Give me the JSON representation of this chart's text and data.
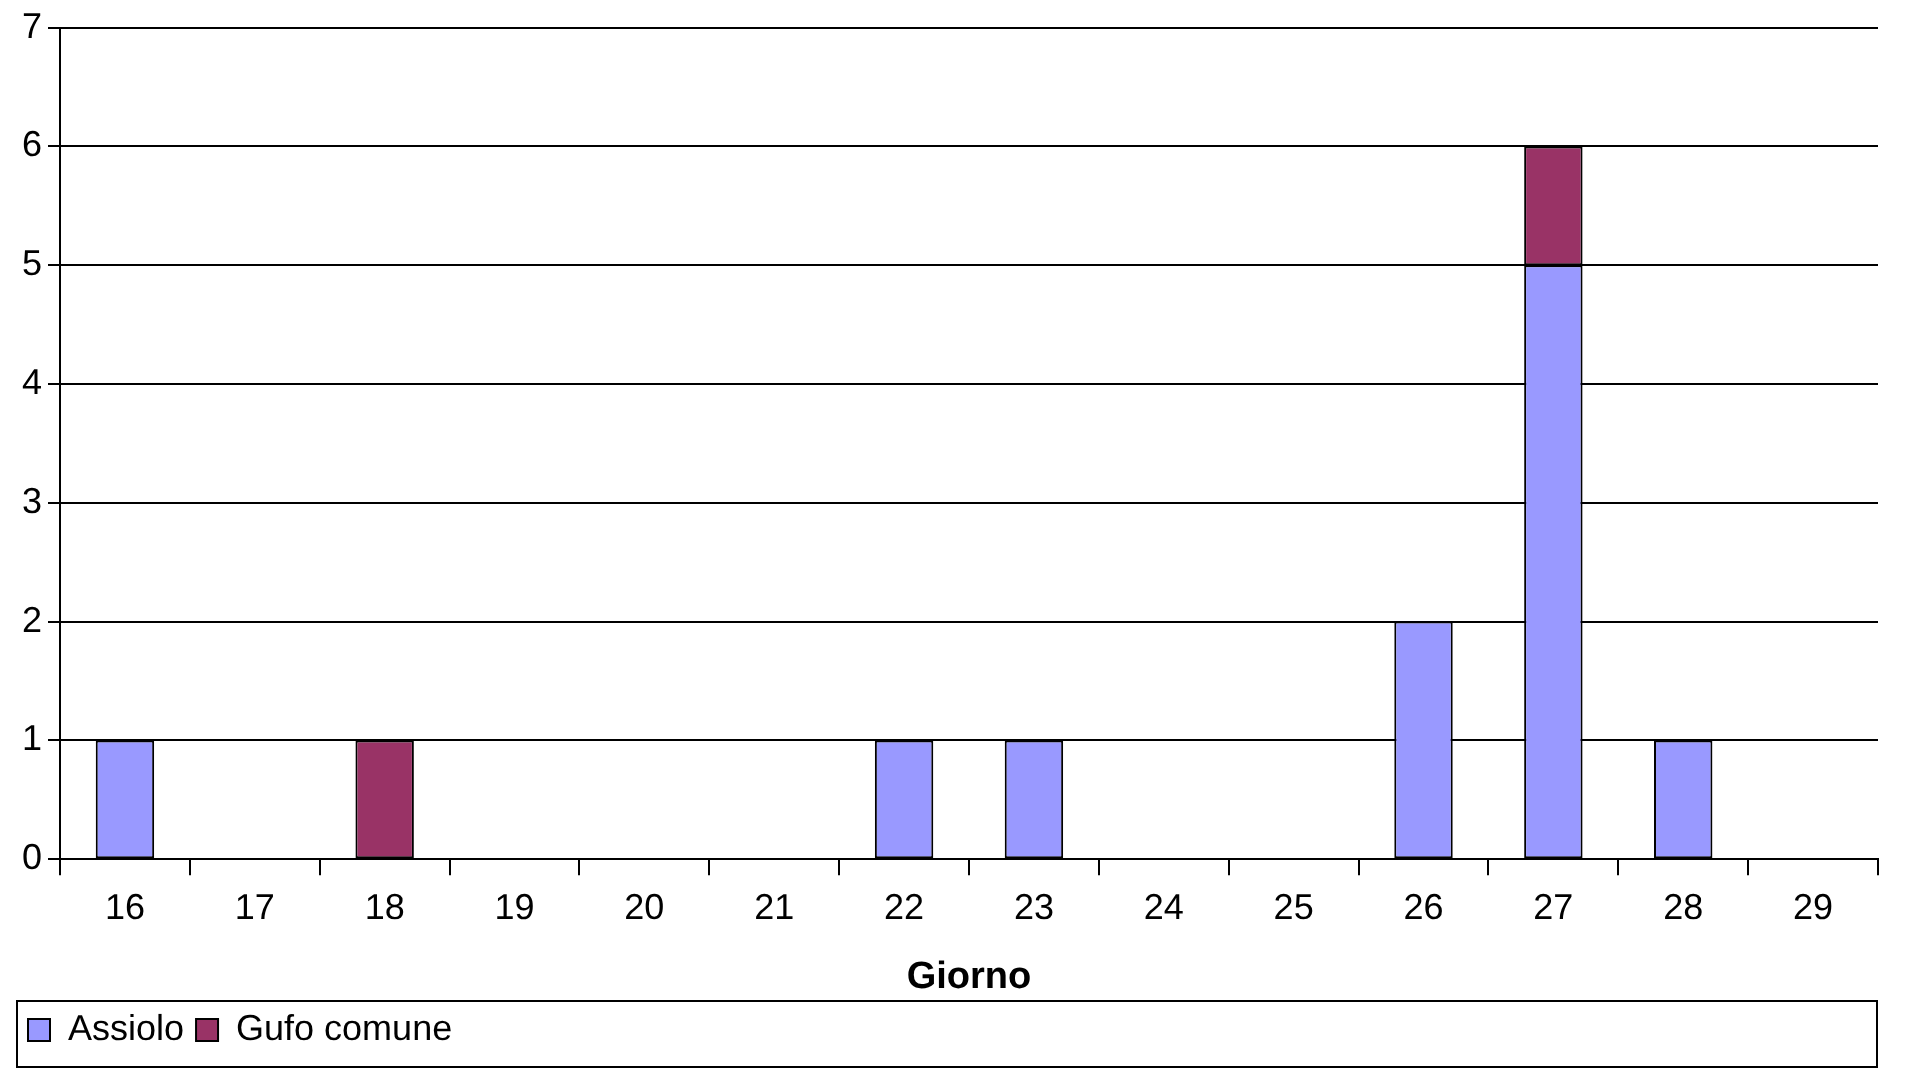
{
  "chart_data": {
    "type": "bar",
    "xlabel": "Giorno",
    "categories": [
      "16",
      "17",
      "18",
      "19",
      "20",
      "21",
      "22",
      "23",
      "24",
      "25",
      "26",
      "27",
      "28",
      "29"
    ],
    "series": [
      {
        "name": "Assiolo",
        "color": "#9999ff",
        "values": [
          1,
          0,
          0,
          0,
          0,
          0,
          1,
          1,
          0,
          0,
          2,
          5,
          1,
          0
        ]
      },
      {
        "name": "Gufo comune",
        "color": "#993366",
        "values": [
          0,
          0,
          1,
          0,
          0,
          0,
          0,
          0,
          0,
          0,
          0,
          1,
          0,
          0
        ]
      }
    ],
    "stacked": true,
    "ylim": [
      0,
      7
    ],
    "yticks": [
      0,
      1,
      2,
      3,
      4,
      5,
      6,
      7
    ],
    "grid": "y",
    "legend": "bottom left"
  }
}
